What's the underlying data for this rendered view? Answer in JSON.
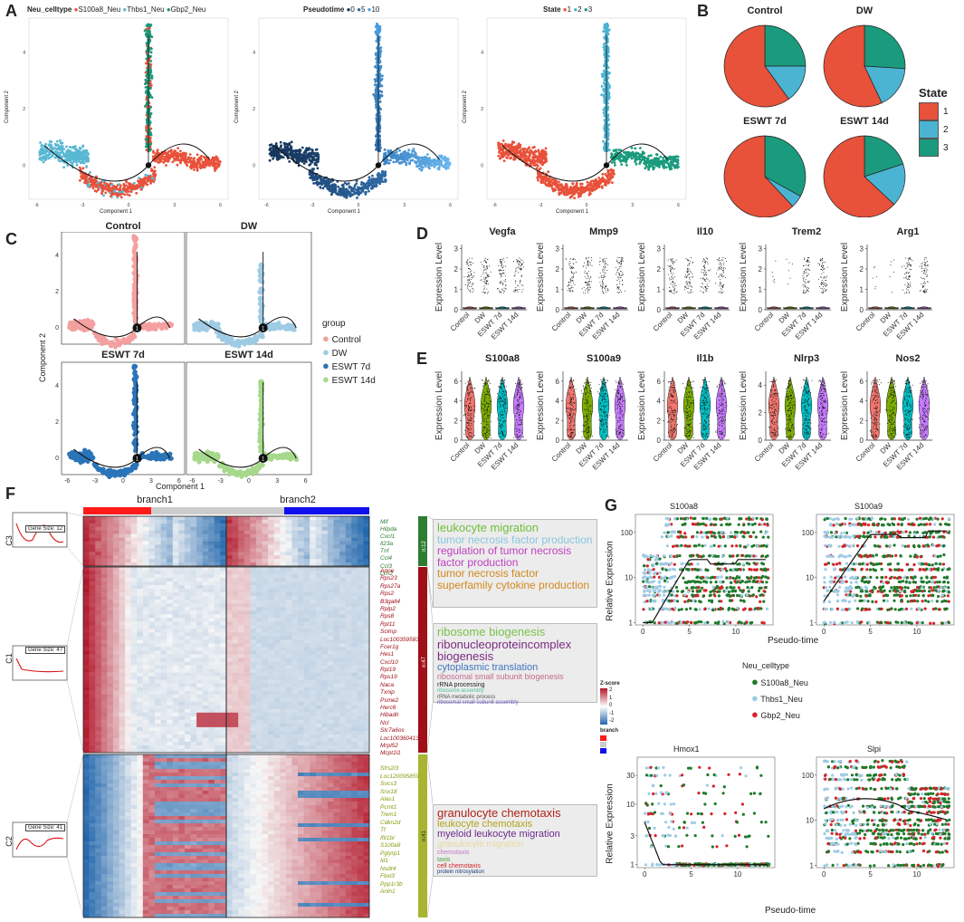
{
  "panel_labels": [
    "A",
    "B",
    "C",
    "D",
    "E",
    "F",
    "G"
  ],
  "colors": {
    "s100a8": "#e8513a",
    "thbs1": "#58b8d4",
    "gbp2": "#19977a",
    "state1": "#e8513a",
    "state2": "#4bb4d3",
    "state3": "#1a9b7d",
    "pt_dark": "#16365c",
    "pt_light": "#4a9ee0",
    "control": "#f4a0a0",
    "dw": "#9fcbe4",
    "eswt7": "#2a74b8",
    "eswt14": "#a6d98b",
    "cl_s100a8": "#1e7a2a",
    "cl_thbs1": "#9fcbe4",
    "cl_gbp2": "#d7222a",
    "heat_red": "#b2182b",
    "heat_blue": "#2166ac",
    "c3": "#2e7d32",
    "c1": "#a01018",
    "c2": "#a8b530"
  },
  "panelA": {
    "legends": [
      {
        "title": "Neu_celltype",
        "items": [
          "S100a8_Neu",
          "Thbs1_Neu",
          "Gbp2_Neu"
        ]
      },
      {
        "title": "Pseudotime",
        "items": [
          "0",
          "5",
          "10"
        ]
      },
      {
        "title": "State",
        "items": [
          "1",
          "2",
          "3"
        ]
      }
    ],
    "xlabel": "Component 1",
    "ylabel": "Component 2",
    "xticks": [
      "-6",
      "-3",
      "0",
      "3",
      "6"
    ],
    "yticks": [
      "0",
      "2",
      "4"
    ]
  },
  "panelB": {
    "chart_data": {
      "type": "pie",
      "legend_title": "State",
      "legend_items": [
        "1",
        "2",
        "3"
      ],
      "pies": [
        {
          "title": "Control",
          "values": [
            60,
            15,
            25
          ]
        },
        {
          "title": "DW",
          "values": [
            57,
            17,
            26
          ]
        },
        {
          "title": "ESWT 7d",
          "values": [
            62,
            5,
            33
          ]
        },
        {
          "title": "ESWT 14d",
          "values": [
            63,
            17,
            20
          ]
        }
      ]
    }
  },
  "panelC": {
    "facets": [
      "Control",
      "DW",
      "ESWT 7d",
      "ESWT 14d"
    ],
    "legend_title": "group",
    "legend_items": [
      "Control",
      "DW",
      "ESWT 7d",
      "ESWT 14d"
    ],
    "xlabel": "Component 1",
    "ylabel": "Component 2",
    "xticks": [
      "-6",
      "-3",
      "0",
      "3",
      "6"
    ],
    "yticks": [
      "0",
      "2",
      "4"
    ],
    "node": "1"
  },
  "panelD": {
    "genes": [
      "Vegfa",
      "Mmp9",
      "Il10",
      "Trem2",
      "Arg1"
    ],
    "groups": [
      "Control",
      "DW",
      "ESWT 7d",
      "ESWT 14d"
    ],
    "ylabel": "Expression Level",
    "yticks": [
      [
        "0",
        "1",
        "2",
        "3"
      ],
      [
        "0",
        "1",
        "2",
        "3"
      ],
      [
        "0",
        "1",
        "2",
        "3"
      ],
      [
        "0",
        "1",
        "2",
        "3"
      ],
      [
        "0",
        "1",
        "2",
        "3"
      ]
    ]
  },
  "panelE": {
    "genes": [
      "S100a8",
      "S100a9",
      "Il1b",
      "Nlrp3",
      "Nos2"
    ],
    "groups": [
      "Control",
      "DW",
      "ESWT 7d",
      "ESWT 14d"
    ],
    "ylabel": "Expression Level",
    "yticks": [
      [
        "0",
        "2",
        "4",
        "6"
      ],
      [
        "0",
        "2",
        "4",
        "6"
      ],
      [
        "0",
        "2",
        "4",
        "6"
      ],
      [
        "0",
        "2",
        "4"
      ],
      [
        "0",
        "2",
        "4",
        "6"
      ]
    ]
  },
  "panelF": {
    "branch1": "branch1",
    "branch2": "branch2",
    "clusters": [
      {
        "id": "C3",
        "size_label": "Gene Size: 12",
        "n": "n:12",
        "genes": [
          "Mif",
          "Hilpda",
          "Cxcl1",
          "Il23a",
          "Tnf",
          "Ccl4",
          "Ccl3",
          "Lcn2"
        ],
        "go": [
          {
            "t": "leukocyte migration",
            "c": "#6fbf3a",
            "s": 13
          },
          {
            "t": "tumor necrosis factor production",
            "c": "#8ac6e0",
            "s": 12
          },
          {
            "t": "regulation of tumor necrosis factor production",
            "c": "#c13fc0",
            "s": 12
          },
          {
            "t": "tumor necrosis factor superfamily cytokine production",
            "c": "#d2891e",
            "s": 12
          }
        ]
      },
      {
        "id": "C1",
        "size_label": "Gene Size: 47",
        "n": "n:47",
        "genes": [
          "Apoe",
          "Rps23",
          "Rps27a",
          "Rps2",
          "B3galt4",
          "Rplp2",
          "Rps8",
          "Rpl11",
          "Scimp",
          "Loc100359583",
          "Fcer1g",
          "Hes1",
          "Cxcl10",
          "Rpl19",
          "Rps19",
          "Naca",
          "Txnip",
          "Psme2",
          "Herc6",
          "Hibadh",
          "Ncl",
          "Slc7a6os",
          "Loc100360413",
          "Mrpl52",
          "Mcpt1l1"
        ],
        "go": [
          {
            "t": "ribosome biogenesis",
            "c": "#79c24a",
            "s": 13
          },
          {
            "t": "ribonucleoproteincomplex biogenesis",
            "c": "#7a2a80",
            "s": 13
          },
          {
            "t": "cytoplasmic translation",
            "c": "#3f74c0",
            "s": 11
          },
          {
            "t": "ribosomal small subunit biogenesis",
            "c": "#c46b8f",
            "s": 9
          },
          {
            "t": "rRNA processing",
            "c": "#222222",
            "s": 7
          },
          {
            "t": "ribosome assembly",
            "c": "#4fc0a0",
            "s": 6
          },
          {
            "t": "rRNA metabolic process",
            "c": "#555555",
            "s": 6
          },
          {
            "t": "ribosomal small subunit assembly",
            "c": "#6b5bc0",
            "s": 6
          }
        ]
      },
      {
        "id": "C2",
        "size_label": "Gene Size: 41",
        "n": "n:41",
        "genes": [
          "Sfrs2l3",
          "Loc120095859",
          "Socs3",
          "Snx18",
          "Alas1",
          "Pcmt1",
          "Trem1",
          "Cdkn2d",
          "Tf",
          "Ifit1bl",
          "S100a8",
          "Pglyrp1",
          "Id1",
          "Nudt4",
          "Fbxl3",
          "Ppp1r3b",
          "Anln1"
        ],
        "go": [
          {
            "t": "granulocyte chemotaxis",
            "c": "#b0221a",
            "s": 13
          },
          {
            "t": "leukocyte chemotaxis",
            "c": "#b3a41e",
            "s": 11
          },
          {
            "t": "myeloid leukocyte migration",
            "c": "#6b2a8a",
            "s": 11
          },
          {
            "t": "granulocyte migration",
            "c": "#e7d9a0",
            "s": 10
          },
          {
            "t": "chemotaxis",
            "c": "#c27ac0",
            "s": 7
          },
          {
            "t": "taxis",
            "c": "#4aa040",
            "s": 7
          },
          {
            "t": "cell chemotaxis",
            "c": "#d2222a",
            "s": 7
          },
          {
            "t": "protein nitrosylation",
            "c": "#1f3a7a",
            "s": 6
          }
        ]
      }
    ],
    "zscore_title": "Z-score",
    "zscore_ticks": [
      "2",
      "1",
      "0",
      "-1",
      "-2"
    ],
    "branch_legend_title": "branch"
  },
  "panelG": {
    "genes": [
      "S100a8",
      "S100a9",
      "Hmox1",
      "Slpi"
    ],
    "ylabel": "Relative Expression",
    "xlabel": "Pseudo-time",
    "yticks_top": [
      "1",
      "10",
      "100"
    ],
    "yticks_hmox": [
      "1",
      "3",
      "10",
      "30"
    ],
    "yticks_slpi": [
      "1",
      "10",
      "100"
    ],
    "xticks": [
      "0",
      "5",
      "10"
    ],
    "legend_title": "Neu_celltype",
    "legend_items": [
      "S100a8_Neu",
      "Thbs1_Neu",
      "Gbp2_Neu"
    ]
  }
}
